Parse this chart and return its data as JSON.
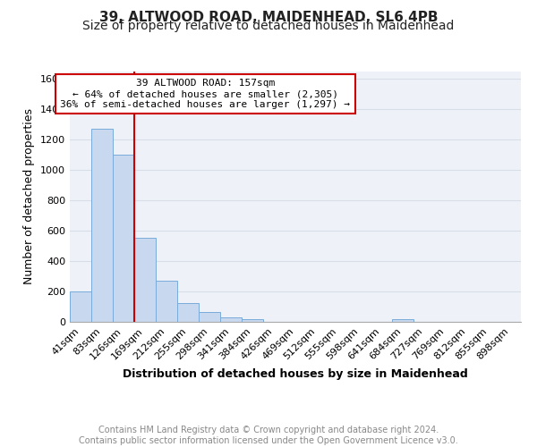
{
  "title1": "39, ALTWOOD ROAD, MAIDENHEAD, SL6 4PB",
  "title2": "Size of property relative to detached houses in Maidenhead",
  "xlabel": "Distribution of detached houses by size in Maidenhead",
  "ylabel": "Number of detached properties",
  "categories": [
    "41sqm",
    "83sqm",
    "126sqm",
    "169sqm",
    "212sqm",
    "255sqm",
    "298sqm",
    "341sqm",
    "384sqm",
    "426sqm",
    "469sqm",
    "512sqm",
    "555sqm",
    "598sqm",
    "641sqm",
    "684sqm",
    "727sqm",
    "769sqm",
    "812sqm",
    "855sqm",
    "898sqm"
  ],
  "values": [
    200,
    1270,
    1100,
    555,
    270,
    125,
    62,
    32,
    18,
    0,
    0,
    0,
    0,
    0,
    0,
    18,
    0,
    0,
    0,
    0,
    0
  ],
  "bar_color": "#c8d8ee",
  "bar_edge_color": "#7aabda",
  "background_color": "#eef2f8",
  "grid_color": "#d8dde8",
  "annotation_text": "39 ALTWOOD ROAD: 157sqm\n← 64% of detached houses are smaller (2,305)\n36% of semi-detached houses are larger (1,297) →",
  "annotation_box_color": "#ffffff",
  "annotation_box_edge": "#cc0000",
  "vline_x": 2.5,
  "vline_color": "#cc0000",
  "ylim": [
    0,
    1650
  ],
  "yticks": [
    0,
    200,
    400,
    600,
    800,
    1000,
    1200,
    1400,
    1600
  ],
  "footer": "Contains HM Land Registry data © Crown copyright and database right 2024.\nContains public sector information licensed under the Open Government Licence v3.0.",
  "title1_fontsize": 11,
  "title2_fontsize": 10,
  "xlabel_fontsize": 9,
  "ylabel_fontsize": 9,
  "tick_fontsize": 8,
  "annotation_fontsize": 8,
  "footer_fontsize": 7
}
